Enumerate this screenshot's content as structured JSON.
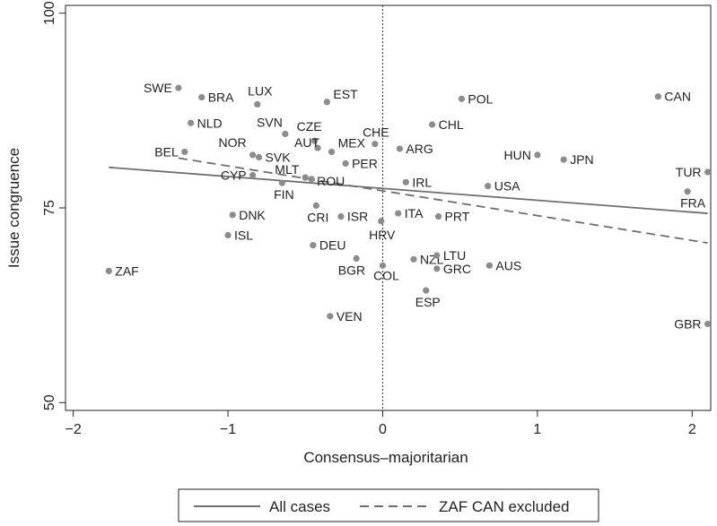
{
  "chart_data": {
    "type": "scatter",
    "xlabel": "Consensus–majoritarian",
    "ylabel": "Issue congruence",
    "xlim": [
      -2.05,
      2.12
    ],
    "ylim": [
      49,
      101
    ],
    "xticks": [
      -2,
      -1,
      0,
      1,
      2
    ],
    "xtick_labels": [
      "−2",
      "−1",
      "0",
      "1",
      "2"
    ],
    "yticks": [
      50,
      75,
      100
    ],
    "ytick_labels": [
      "50",
      "75",
      "100"
    ],
    "grid": false,
    "reference_line_x": 0,
    "colors": {
      "points": "#8c8c8c",
      "fit_all": "#6e6e6e",
      "fit_excluded": "#6e6e6e"
    },
    "points": [
      {
        "label": "SWE",
        "x": -1.32,
        "y": 90.4
      },
      {
        "label": "BRA",
        "x": -1.17,
        "y": 89.2
      },
      {
        "label": "LUX",
        "x": -0.81,
        "y": 88.3
      },
      {
        "label": "EST",
        "x": -0.36,
        "y": 88.6
      },
      {
        "label": "POL",
        "x": 0.51,
        "y": 89.0
      },
      {
        "label": "CAN",
        "x": 1.78,
        "y": 89.3
      },
      {
        "label": "NLD",
        "x": -1.24,
        "y": 85.9
      },
      {
        "label": "SVN",
        "x": -0.63,
        "y": 84.5
      },
      {
        "label": "CZE",
        "x": -0.44,
        "y": 83.6
      },
      {
        "label": "CHL",
        "x": 0.32,
        "y": 85.7
      },
      {
        "label": "CHE",
        "x": -0.05,
        "y": 83.2
      },
      {
        "label": "AUT",
        "x": -0.42,
        "y": 82.7
      },
      {
        "label": "MEX",
        "x": -0.33,
        "y": 82.2
      },
      {
        "label": "ARG",
        "x": 0.11,
        "y": 82.6
      },
      {
        "label": "BEL",
        "x": -1.28,
        "y": 82.2
      },
      {
        "label": "NOR",
        "x": -0.84,
        "y": 81.8
      },
      {
        "label": "SVK",
        "x": -0.8,
        "y": 81.5
      },
      {
        "label": "HUN",
        "x": 1.0,
        "y": 81.8
      },
      {
        "label": "JPN",
        "x": 1.17,
        "y": 81.2
      },
      {
        "label": "PER",
        "x": -0.24,
        "y": 80.7
      },
      {
        "label": "CYP",
        "x": -0.84,
        "y": 79.2
      },
      {
        "label": "MLT",
        "x": -0.5,
        "y": 78.9
      },
      {
        "label": "ROU",
        "x": -0.46,
        "y": 78.7
      },
      {
        "label": "TUR",
        "x": 2.1,
        "y": 79.6
      },
      {
        "label": "FIN",
        "x": -0.65,
        "y": 78.2
      },
      {
        "label": "IRL",
        "x": 0.15,
        "y": 78.3
      },
      {
        "label": "USA",
        "x": 0.68,
        "y": 77.8
      },
      {
        "label": "FRA",
        "x": 1.97,
        "y": 77.1
      },
      {
        "label": "CRI",
        "x": -0.43,
        "y": 75.3
      },
      {
        "label": "DNK",
        "x": -0.97,
        "y": 74.1
      },
      {
        "label": "ISR",
        "x": -0.27,
        "y": 73.9
      },
      {
        "label": "ITA",
        "x": 0.1,
        "y": 74.3
      },
      {
        "label": "PRT",
        "x": 0.36,
        "y": 73.9
      },
      {
        "label": "HRV",
        "x": -0.01,
        "y": 73.3
      },
      {
        "label": "ISL",
        "x": -1.0,
        "y": 71.5
      },
      {
        "label": "DEU",
        "x": -0.45,
        "y": 70.2
      },
      {
        "label": "NZL",
        "x": 0.2,
        "y": 68.4
      },
      {
        "label": "LTU",
        "x": 0.35,
        "y": 68.9
      },
      {
        "label": "BGR",
        "x": -0.17,
        "y": 68.5
      },
      {
        "label": "COL",
        "x": 0.0,
        "y": 67.6
      },
      {
        "label": "GRC",
        "x": 0.35,
        "y": 67.2
      },
      {
        "label": "AUS",
        "x": 0.69,
        "y": 67.6
      },
      {
        "label": "ZAF",
        "x": -1.77,
        "y": 66.9
      },
      {
        "label": "ESP",
        "x": 0.28,
        "y": 64.4
      },
      {
        "label": "VEN",
        "x": -0.34,
        "y": 61.1
      },
      {
        "label": "GBR",
        "x": 2.1,
        "y": 60.1
      }
    ],
    "fit_lines": [
      {
        "name": "All cases",
        "style": "solid",
        "x": [
          -1.77,
          2.1
        ],
        "y": [
          80.2,
          74.3
        ]
      },
      {
        "name": "ZAF CAN excluded",
        "style": "dashed",
        "x": [
          -1.32,
          2.1
        ],
        "y": [
          81.4,
          70.5
        ]
      }
    ],
    "legend": {
      "position": "bottom-center",
      "entries": [
        "All cases",
        "ZAF CAN excluded"
      ]
    }
  }
}
